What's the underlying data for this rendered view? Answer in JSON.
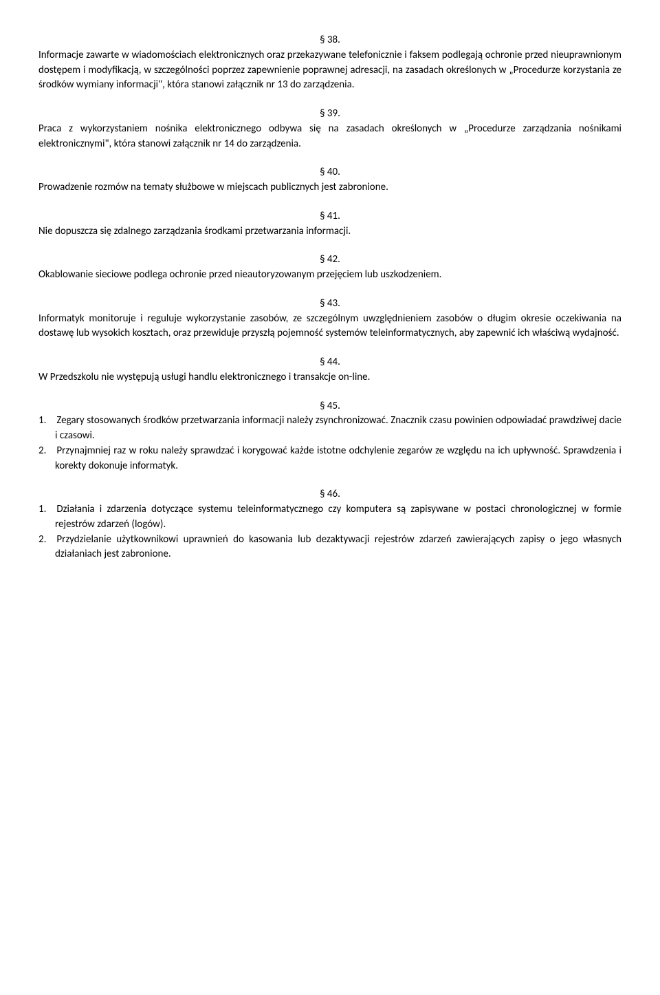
{
  "sections": {
    "s38": {
      "num": "§ 38.",
      "text": "Informacje zawarte w wiadomościach elektronicznych oraz przekazywane telefonicznie i faksem podlegają ochronie przed nieuprawnionym dostępem i modyfikacją, w szczególności poprzez zapewnienie poprawnej adresacji, na zasadach określonych w „Procedurze korzystania ze środków wymiany informacji\", która stanowi załącznik nr 13 do zarządzenia."
    },
    "s39": {
      "num": "§ 39.",
      "text": "Praca z wykorzystaniem nośnika elektronicznego odbywa się na zasadach określonych w „Procedurze zarządzania nośnikami elektronicznymi\", która stanowi załącznik nr 14 do zarządzenia."
    },
    "s40": {
      "num": "§ 40.",
      "text": "Prowadzenie rozmów na tematy służbowe w miejscach publicznych jest zabronione."
    },
    "s41": {
      "num": "§ 41.",
      "text": "Nie dopuszcza się zdalnego zarządzania środkami przetwarzania informacji."
    },
    "s42": {
      "num": "§ 42.",
      "text": "Okablowanie sieciowe podlega ochronie przed nieautoryzowanym przejęciem lub uszkodzeniem."
    },
    "s43": {
      "num": "§ 43.",
      "text": "Informatyk monitoruje i reguluje wykorzystanie zasobów, ze szczególnym uwzględnieniem zasobów o długim okresie oczekiwania na dostawę lub wysokich kosztach, oraz przewiduje przyszłą pojemność systemów teleinformatycznych, aby zapewnić ich właściwą wydajność."
    },
    "s44": {
      "num": "§ 44.",
      "text": "W Przedszkolu nie występują usługi handlu elektronicznego i transakcje on-line."
    },
    "s45": {
      "num": "§ 45.",
      "item1": "1. Zegary stosowanych środków przetwarzania informacji należy zsynchronizować. Znacznik czasu powinien odpowiadać prawdziwej dacie i czasowi.",
      "item2": "2. Przynajmniej raz w roku należy sprawdzać i korygować każde istotne odchylenie zegarów ze względu na ich upływność. Sprawdzenia i korekty dokonuje informatyk."
    },
    "s46": {
      "num": "§ 46.",
      "item1": "1. Działania i zdarzenia dotyczące systemu teleinformatycznego czy komputera są zapisywane w postaci chronologicznej w formie rejestrów zdarzeń (logów).",
      "item2": "2. Przydzielanie użytkownikowi uprawnień do kasowania lub dezaktywacji rejestrów zdarzeń zawierających zapisy o jego własnych działaniach jest zabronione."
    }
  }
}
